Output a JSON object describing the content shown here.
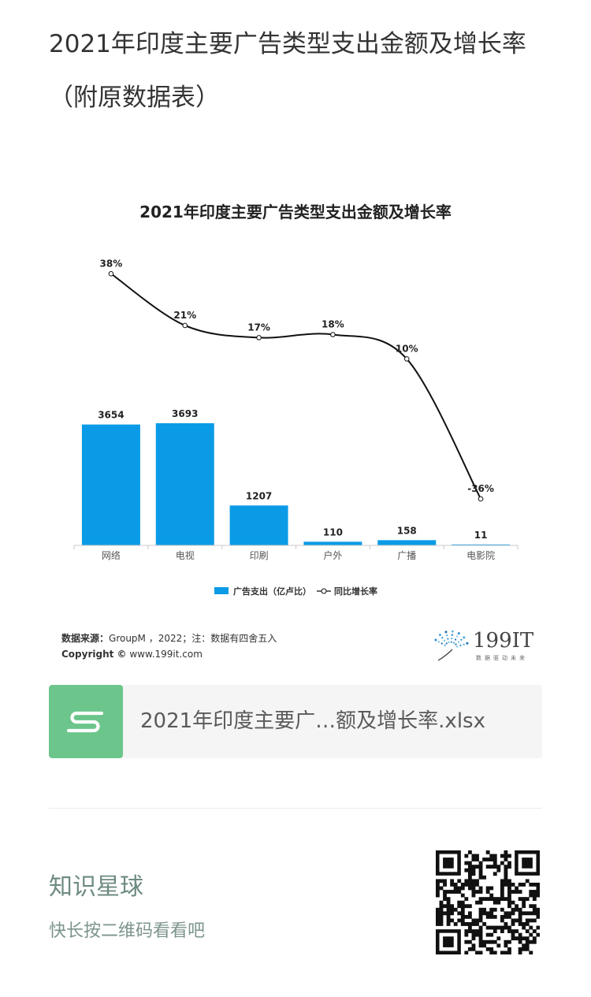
{
  "article": {
    "title": "2021年印度主要广告类型支出金额及增长率（附原数据表）"
  },
  "chart_data": {
    "type": "bar+line",
    "title": "2021年印度主要广告类型支出金额及增长率",
    "categories": [
      "网络",
      "电视",
      "印刷",
      "户外",
      "广播",
      "电影院"
    ],
    "series": [
      {
        "name": "广告支出（亿卢比）",
        "type": "bar",
        "color": "#0b9be6",
        "values": [
          3654,
          3693,
          1207,
          110,
          158,
          11
        ],
        "labels": [
          "3654",
          "3693",
          "1207",
          "110",
          "158",
          "11"
        ]
      },
      {
        "name": "同比增长率",
        "type": "line",
        "color": "#111111",
        "values": [
          38,
          21,
          17,
          18,
          10,
          -36
        ],
        "labels": [
          "38%",
          "21%",
          "17%",
          "18%",
          "10%",
          "-36%"
        ]
      }
    ],
    "source_label": "数据来源：",
    "source_text": "GroupM ，2022；注：数据有四舍五入",
    "copyright_label": "Copyright ©",
    "copyright_text": " www.199it.com",
    "logo_text": "199IT",
    "logo_tagline": "数据驱动未来"
  },
  "attachment": {
    "icon": "spreadsheet-s-icon",
    "icon_color": "#6cc58b",
    "file_name": "2021年印度主要广…额及增长率.xlsx"
  },
  "promo": {
    "title": "知识星球",
    "subtitle": "快长按二维码看看吧",
    "qr_icon": "qr-code-icon"
  }
}
